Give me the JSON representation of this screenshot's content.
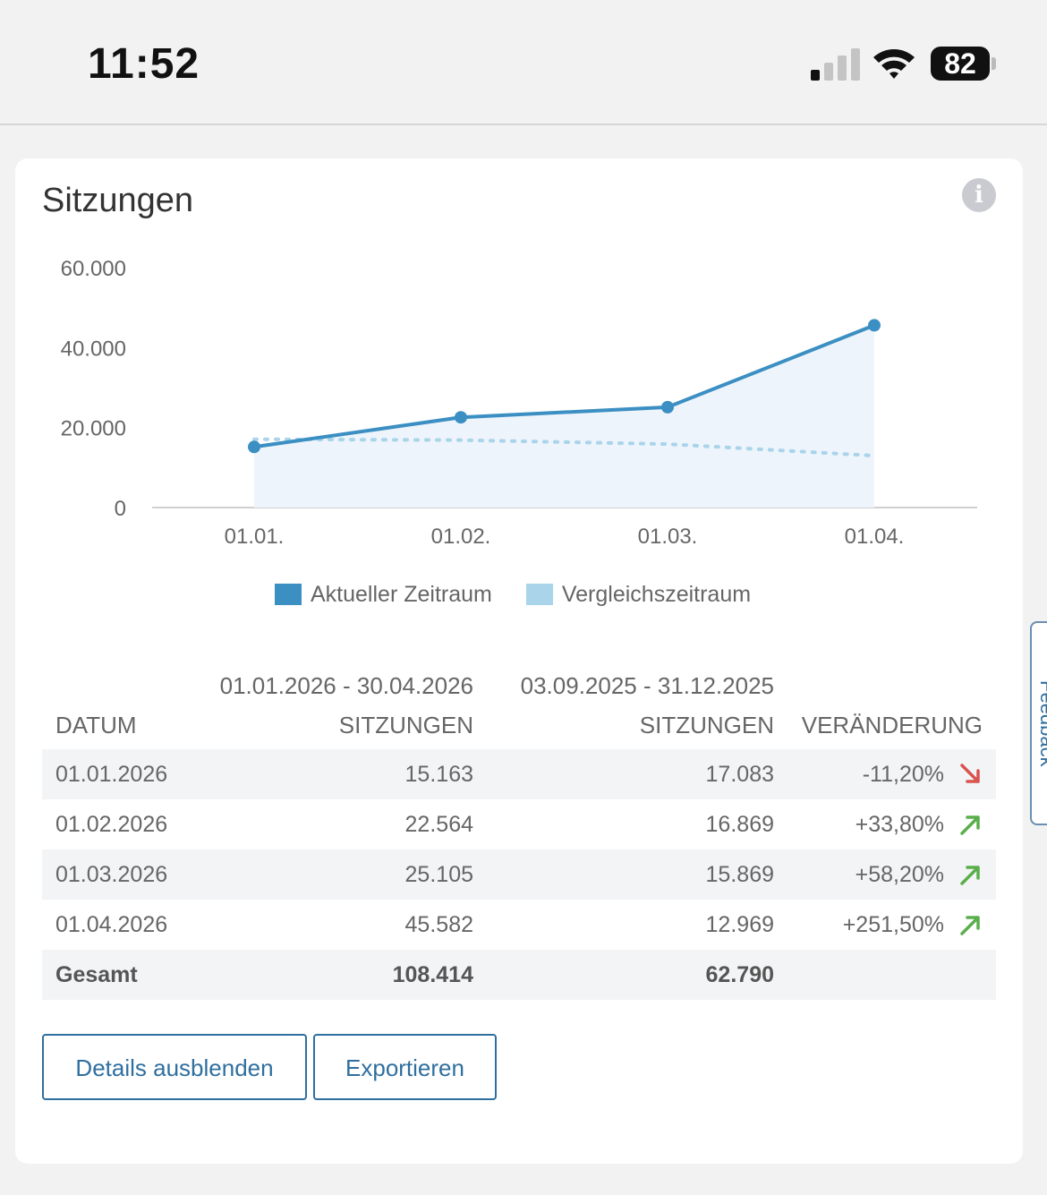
{
  "status_bar": {
    "time": "11:52",
    "battery": "82",
    "signal_bars_active": 1,
    "signal_bars_total": 4
  },
  "card": {
    "title": "Sitzungen",
    "info_icon": "info-icon"
  },
  "chart_data": {
    "type": "area",
    "categories": [
      "01.01.",
      "01.02.",
      "01.03.",
      "01.04."
    ],
    "y_ticks": [
      "0",
      "20.000",
      "40.000",
      "60.000"
    ],
    "ylim": [
      0,
      60000
    ],
    "grid": false,
    "legend_position": "bottom-center",
    "series": [
      {
        "name": "Aktueller Zeitraum",
        "values": [
          15163,
          22564,
          25105,
          45582
        ],
        "color": "#3b8fc2",
        "style": "solid-line-with-area"
      },
      {
        "name": "Vergleichszeitraum",
        "values": [
          17083,
          16869,
          15869,
          12969
        ],
        "color": "#a9d4ea",
        "style": "dotted"
      }
    ]
  },
  "legend": {
    "current": "Aktueller Zeitraum",
    "comparison": "Vergleichszeitraum"
  },
  "table": {
    "range_current": "01.01.2026 - 30.04.2026",
    "range_comparison": "03.09.2025 - 31.12.2025",
    "headers": {
      "date": "DATUM",
      "current": "SITZUNGEN",
      "comparison": "SITZUNGEN",
      "change": "VERÄNDERUNG"
    },
    "rows": [
      {
        "date": "01.01.2026",
        "current": "15.163",
        "comparison": "17.083",
        "change": "-11,20%",
        "trend": "down"
      },
      {
        "date": "01.02.2026",
        "current": "22.564",
        "comparison": "16.869",
        "change": "+33,80%",
        "trend": "up"
      },
      {
        "date": "01.03.2026",
        "current": "25.105",
        "comparison": "15.869",
        "change": "+58,20%",
        "trend": "up"
      },
      {
        "date": "01.04.2026",
        "current": "45.582",
        "comparison": "12.969",
        "change": "+251,50%",
        "trend": "up"
      }
    ],
    "total": {
      "label": "Gesamt",
      "current": "108.414",
      "comparison": "62.790"
    }
  },
  "buttons": {
    "hide_details": "Details ausblenden",
    "export": "Exportieren"
  },
  "colors": {
    "accent": "#2f6f9f",
    "up": "#5aae4b",
    "down": "#d9534f"
  }
}
